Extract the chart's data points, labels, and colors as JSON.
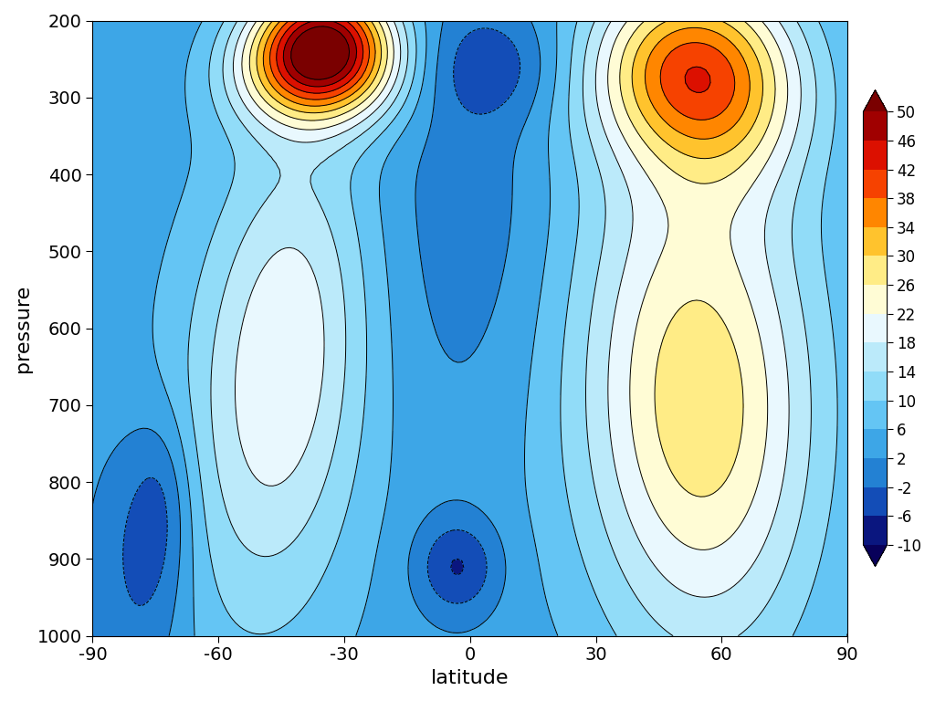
{
  "xlabel": "latitude",
  "ylabel": "pressure",
  "lat_min": -90,
  "lat_max": 90,
  "lat_ticks": [
    -90,
    -60,
    -30,
    0,
    30,
    60,
    90
  ],
  "pres_min": 200,
  "pres_max": 1000,
  "pres_ticks": [
    200,
    300,
    400,
    500,
    600,
    700,
    800,
    900,
    1000
  ],
  "cbar_levels": [
    -10,
    -6,
    -2,
    2,
    6,
    10,
    14,
    18,
    22,
    26,
    30,
    34,
    38,
    42,
    46,
    50
  ],
  "cbar_ticks": [
    -10,
    -6,
    -2,
    2,
    6,
    10,
    14,
    18,
    22,
    26,
    30,
    34,
    38,
    42,
    46,
    50
  ],
  "vmin": -10,
  "vmax": 50,
  "background_color": "#ffffff"
}
